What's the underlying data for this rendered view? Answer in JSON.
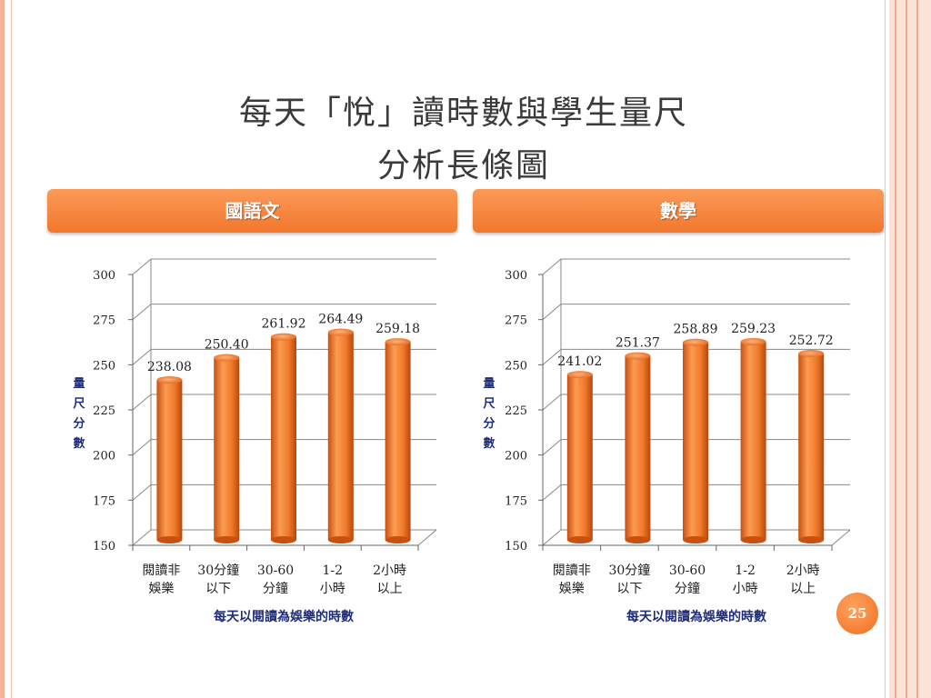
{
  "slide": {
    "title_line1": "每天「悅」讀時數與學生量尺",
    "title_line2": "分析長條圖",
    "page_number": "25"
  },
  "panels": {
    "left_header": "國語文",
    "right_header": "數學"
  },
  "colors": {
    "bar": "#f07a2a",
    "header": "#f58a3d",
    "axis_title": "#1f2d7a"
  },
  "chart_data": [
    {
      "type": "bar",
      "title": "國語文",
      "categories": [
        [
          "閱讀非",
          "娛樂"
        ],
        [
          "30分鐘",
          "以下"
        ],
        [
          "30-60",
          "分鐘"
        ],
        [
          "1-2",
          "小時"
        ],
        [
          "2小時",
          "以上"
        ]
      ],
      "values": [
        238.08,
        250.4,
        261.92,
        264.49,
        259.18
      ],
      "value_labels": [
        "238.08",
        "250.40",
        "261.92",
        "264.49",
        "259.18"
      ],
      "xlabel": "每天以閱讀為娛樂的時數",
      "ylabel": [
        "量",
        "尺",
        "分",
        "數"
      ],
      "ylim": [
        150,
        300
      ],
      "yticks": [
        "150",
        "175",
        "200",
        "225",
        "250",
        "275",
        "300"
      ],
      "grid": true
    },
    {
      "type": "bar",
      "title": "數學",
      "categories": [
        [
          "閱讀非",
          "娛樂"
        ],
        [
          "30分鐘",
          "以下"
        ],
        [
          "30-60",
          "分鐘"
        ],
        [
          "1-2",
          "小時"
        ],
        [
          "2小時",
          "以上"
        ]
      ],
      "values": [
        241.02,
        251.37,
        258.89,
        259.23,
        252.72
      ],
      "value_labels": [
        "241.02",
        "251.37",
        "258.89",
        "259.23",
        "252.72"
      ],
      "xlabel": "每天以閱讀為娛樂的時數",
      "ylabel": [
        "量",
        "尺",
        "分",
        "數"
      ],
      "ylim": [
        150,
        300
      ],
      "yticks": [
        "150",
        "175",
        "200",
        "225",
        "250",
        "275",
        "300"
      ],
      "grid": true
    }
  ]
}
